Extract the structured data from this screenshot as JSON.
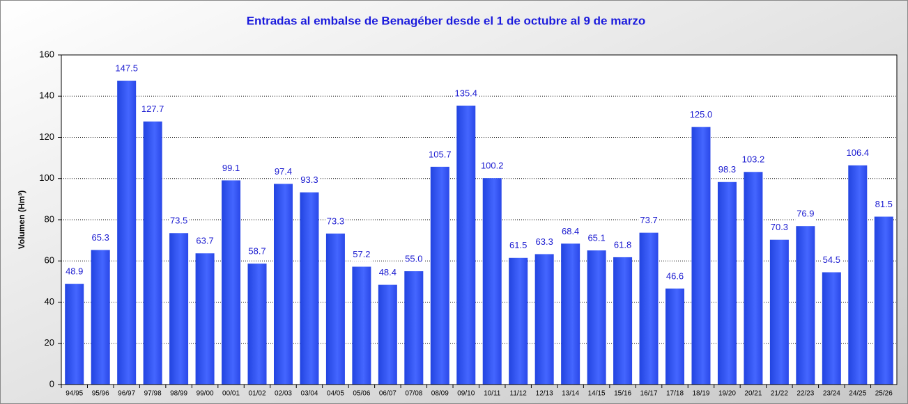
{
  "chart_data": {
    "type": "bar",
    "title": "Entradas al embalse de Benagéber desde el 1 de octubre al 9 de marzo",
    "y_label": "Volumen (Hm³)",
    "categories": [
      "94/95",
      "95/96",
      "96/97",
      "97/98",
      "98/99",
      "99/00",
      "00/01",
      "01/02",
      "02/03",
      "03/04",
      "04/05",
      "05/06",
      "06/07",
      "07/08",
      "08/09",
      "09/10",
      "10/11",
      "11/12",
      "12/13",
      "13/14",
      "14/15",
      "15/16",
      "16/17",
      "17/18",
      "18/19",
      "19/20",
      "20/21",
      "21/22",
      "22/23",
      "23/24",
      "24/25",
      "25/26"
    ],
    "values": [
      48.9,
      65.3,
      147.5,
      127.7,
      73.5,
      63.7,
      99.1,
      58.7,
      97.4,
      93.3,
      73.3,
      57.2,
      48.4,
      55.0,
      105.7,
      135.4,
      100.2,
      61.5,
      63.3,
      68.4,
      65.1,
      61.8,
      73.7,
      46.6,
      125.0,
      98.3,
      103.2,
      70.3,
      76.9,
      54.5,
      106.4,
      81.5
    ],
    "value_labels": [
      "48.9",
      "65.3",
      "147.5",
      "127.7",
      "73.5",
      "63.7",
      "99.1",
      "58.7",
      "97.4",
      "93.3",
      "73.3",
      "57.2",
      "48.4",
      "55.0",
      "105.7",
      "135.4",
      "100.2",
      "61.5",
      "63.3",
      "68.4",
      "65.1",
      "61.8",
      "73.7",
      "46.6",
      "125.0",
      "98.3",
      "103.2",
      "70.3",
      "76.9",
      "54.5",
      "106.4",
      "81.5"
    ],
    "color": "#3355f0",
    "ylim": [
      0,
      160
    ],
    "yticks": [
      0,
      20,
      40,
      60,
      80,
      100,
      120,
      140,
      160
    ],
    "grid": true
  }
}
